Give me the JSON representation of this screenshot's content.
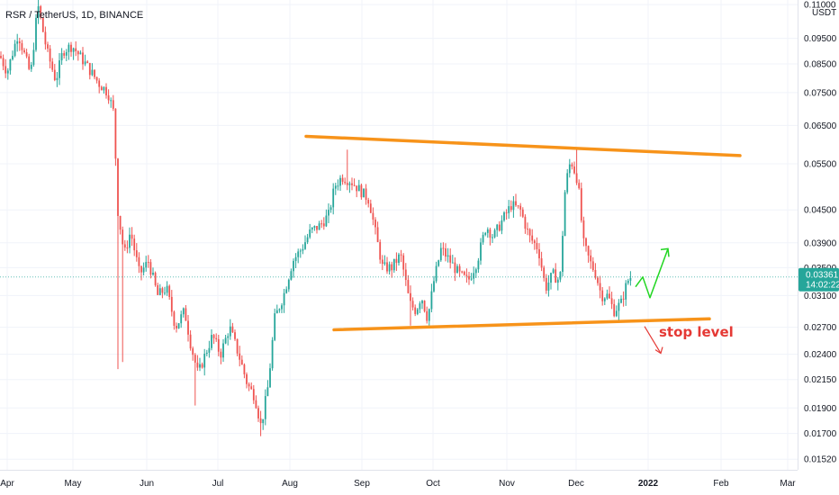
{
  "chart_data": {
    "type": "candlestick",
    "title": "RSR / TetherUS, 1D, BINANCE",
    "currency": "USDT",
    "y_scale": "log",
    "ylim": [
      0.0148,
      0.1105
    ],
    "y_ticks": [
      "0.11000",
      "0.09500",
      "0.08500",
      "0.07500",
      "0.06500",
      "0.05500",
      "0.04500",
      "0.03900",
      "0.03500",
      "0.03100",
      "0.02700",
      "0.02400",
      "0.02150",
      "0.01900",
      "0.01700",
      "0.01520"
    ],
    "x_ticks": [
      "Apr",
      "May",
      "Jun",
      "Jul",
      "Aug",
      "Sep",
      "Oct",
      "Nov",
      "Dec",
      "2022",
      "Feb",
      "Mar"
    ],
    "last_price": "0.03361",
    "countdown": "14:02:22",
    "annotations": {
      "stop_label": "stop level",
      "upper_trendline": [
        0.062,
        0.057
      ],
      "lower_trendline": [
        0.0267,
        0.028
      ]
    },
    "price_path": [
      [
        0,
        0.088
      ],
      [
        8,
        0.082
      ],
      [
        20,
        0.097
      ],
      [
        34,
        0.081
      ],
      [
        42,
        0.11
      ],
      [
        52,
        0.09
      ],
      [
        62,
        0.079
      ],
      [
        70,
        0.09
      ],
      [
        80,
        0.092
      ],
      [
        95,
        0.085
      ],
      [
        110,
        0.078
      ],
      [
        120,
        0.075
      ],
      [
        127,
        0.068
      ],
      [
        130,
        0.046
      ],
      [
        138,
        0.037
      ],
      [
        145,
        0.041
      ],
      [
        155,
        0.034
      ],
      [
        165,
        0.036
      ],
      [
        175,
        0.031
      ],
      [
        185,
        0.032
      ],
      [
        195,
        0.027
      ],
      [
        205,
        0.029
      ],
      [
        212,
        0.025
      ],
      [
        220,
        0.022
      ],
      [
        228,
        0.024
      ],
      [
        236,
        0.026
      ],
      [
        245,
        0.024
      ],
      [
        255,
        0.027
      ],
      [
        265,
        0.024
      ],
      [
        275,
        0.021
      ],
      [
        283,
        0.02
      ],
      [
        290,
        0.0175
      ],
      [
        298,
        0.021
      ],
      [
        305,
        0.028
      ],
      [
        315,
        0.031
      ],
      [
        325,
        0.036
      ],
      [
        335,
        0.038
      ],
      [
        345,
        0.041
      ],
      [
        355,
        0.042
      ],
      [
        365,
        0.044
      ],
      [
        372,
        0.05
      ],
      [
        380,
        0.052
      ],
      [
        390,
        0.051
      ],
      [
        400,
        0.049
      ],
      [
        410,
        0.047
      ],
      [
        418,
        0.04
      ],
      [
        425,
        0.035
      ],
      [
        435,
        0.035
      ],
      [
        445,
        0.037
      ],
      [
        455,
        0.03
      ],
      [
        462,
        0.029
      ],
      [
        468,
        0.031
      ],
      [
        475,
        0.028
      ],
      [
        482,
        0.033
      ],
      [
        490,
        0.038
      ],
      [
        500,
        0.036
      ],
      [
        510,
        0.034
      ],
      [
        520,
        0.033
      ],
      [
        530,
        0.036
      ],
      [
        540,
        0.042
      ],
      [
        548,
        0.04
      ],
      [
        558,
        0.043
      ],
      [
        568,
        0.046
      ],
      [
        578,
        0.045
      ],
      [
        588,
        0.04
      ],
      [
        598,
        0.038
      ],
      [
        606,
        0.032
      ],
      [
        614,
        0.034
      ],
      [
        622,
        0.033
      ],
      [
        628,
        0.05
      ],
      [
        634,
        0.056
      ],
      [
        642,
        0.051
      ],
      [
        648,
        0.039
      ],
      [
        655,
        0.036
      ],
      [
        662,
        0.034
      ],
      [
        668,
        0.031
      ],
      [
        675,
        0.031
      ],
      [
        682,
        0.029
      ],
      [
        690,
        0.03
      ],
      [
        697,
        0.033
      ],
      [
        703,
        0.034
      ]
    ],
    "projection_up": [
      [
        706,
        0.0322
      ],
      [
        714,
        0.0336
      ],
      [
        722,
        0.0307
      ],
      [
        742,
        0.038
      ]
    ],
    "projection_down": [
      [
        716,
        0.0271
      ],
      [
        734,
        0.0241
      ]
    ]
  }
}
